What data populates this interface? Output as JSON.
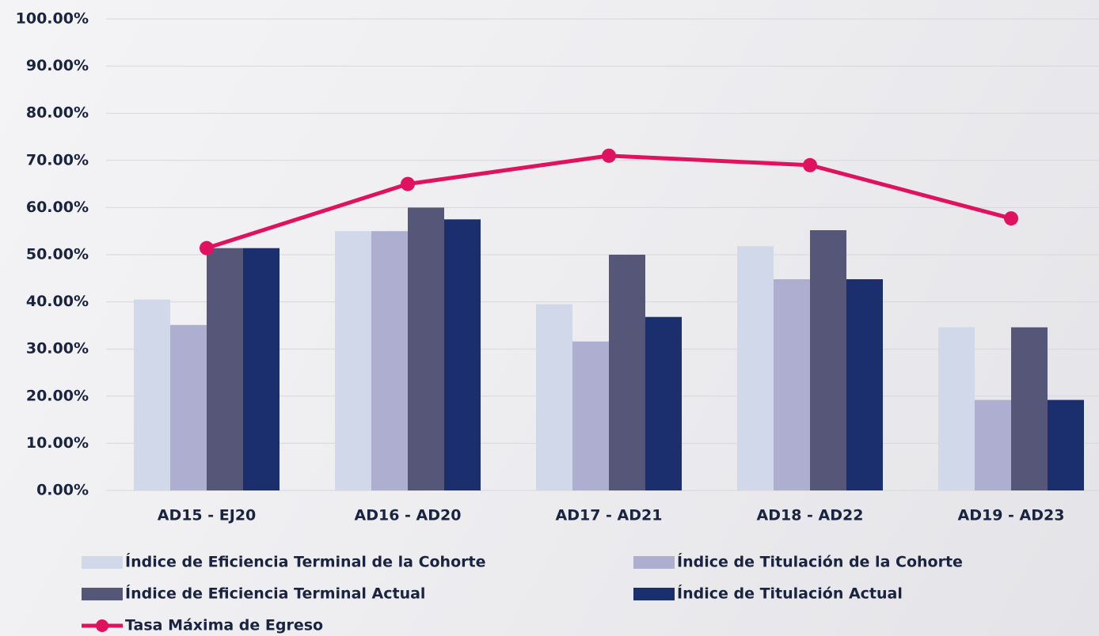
{
  "chart_data": {
    "type": "bar",
    "categories": [
      "AD15 - EJ20",
      "AD16 - AD20",
      "AD17 - AD21",
      "AD18 - AD22",
      "AD19 - AD23"
    ],
    "series": [
      {
        "name": "Índice de Eficiencia Terminal de la Cohorte",
        "color": "#d0d8ea",
        "values": [
          40.5,
          55,
          39.5,
          51.8,
          34.6
        ]
      },
      {
        "name": "Índice de Titulación de la Cohorte",
        "color": "#adaed0",
        "values": [
          35.1,
          55,
          31.6,
          44.8,
          19.2
        ]
      },
      {
        "name": "Índice de Eficiencia Terminal Actual",
        "color": "#555678",
        "values": [
          51.4,
          60,
          50,
          55.2,
          34.6
        ]
      },
      {
        "name": "Índice de Titulación Actual",
        "color": "#1b2f6e",
        "values": [
          51.4,
          57.5,
          36.8,
          44.8,
          19.2
        ]
      },
      {
        "name": "Tasa Máxima de Egreso",
        "color": "#e0125f",
        "type": "line",
        "values": [
          51.4,
          65,
          71,
          69,
          57.7
        ]
      }
    ],
    "ylim": [
      0,
      100
    ],
    "yticks": [
      {
        "value": 0,
        "label": "0.00%"
      },
      {
        "value": 10,
        "label": "10.00%"
      },
      {
        "value": 20,
        "label": "20.00%"
      },
      {
        "value": 30,
        "label": "30.00%"
      },
      {
        "value": 40,
        "label": "40.00%"
      },
      {
        "value": 50,
        "label": "50.00%"
      },
      {
        "value": 60,
        "label": "60.00%"
      },
      {
        "value": 70,
        "label": "70.00%"
      },
      {
        "value": 80,
        "label": "80.00%"
      },
      {
        "value": 90,
        "label": "90.00%"
      },
      {
        "value": 100,
        "label": "100.00%"
      }
    ],
    "grid": true
  }
}
